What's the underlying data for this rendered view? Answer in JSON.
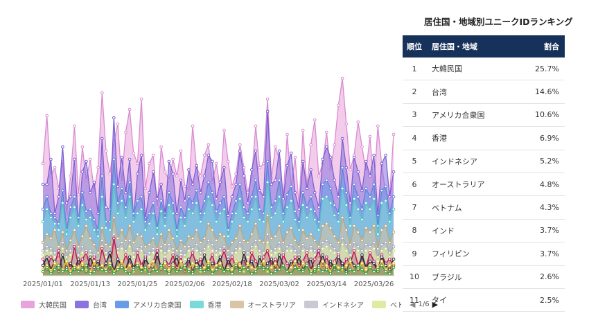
{
  "chart_data": {
    "type": "area",
    "stacked": false,
    "x_ticks": [
      "2025/01/01",
      "2025/01/13",
      "2025/01/25",
      "2025/02/06",
      "2025/02/18",
      "2025/03/02",
      "2025/03/14",
      "2025/03/26"
    ],
    "x_start": "2025/01/01",
    "x_end": "2025/03/31",
    "legend_page": "1/6",
    "legend_position": "bottom",
    "grid": false,
    "series": [
      {
        "name": "大韓民国",
        "color": "#e9a3dc",
        "line": "#d98bd0",
        "values": [
          54,
          77,
          48,
          52,
          42,
          55,
          30,
          48,
          72,
          39,
          62,
          46,
          56,
          41,
          52,
          88,
          60,
          49,
          64,
          73,
          45,
          69,
          80,
          59,
          54,
          85,
          42,
          54,
          58,
          33,
          62,
          50,
          46,
          56,
          48,
          60,
          43,
          42,
          72,
          52,
          48,
          58,
          63,
          45,
          54,
          42,
          70,
          55,
          43,
          49,
          63,
          52,
          40,
          48,
          72,
          52,
          54,
          85,
          47,
          62,
          56,
          38,
          68,
          43,
          57,
          34,
          70,
          43,
          63,
          75,
          48,
          54,
          69,
          51,
          63,
          82,
          95,
          73,
          51,
          58,
          74,
          62,
          50,
          67,
          42,
          72,
          53,
          40,
          38,
          68
        ]
      },
      {
        "name": "台湾",
        "color": "#8b72de",
        "line": "#7a60d2",
        "values": [
          44,
          44,
          56,
          30,
          38,
          62,
          35,
          38,
          56,
          25,
          50,
          55,
          40,
          45,
          30,
          66,
          33,
          32,
          76,
          43,
          57,
          40,
          56,
          28,
          49,
          58,
          28,
          40,
          50,
          37,
          44,
          30,
          55,
          49,
          30,
          46,
          36,
          51,
          44,
          53,
          40,
          48,
          58,
          55,
          37,
          45,
          52,
          29,
          38,
          44,
          60,
          48,
          35,
          51,
          60,
          41,
          38,
          79,
          44,
          46,
          60,
          37,
          53,
          59,
          40,
          32,
          55,
          42,
          51,
          40,
          33,
          56,
          62,
          57,
          46,
          38,
          66,
          52,
          35,
          57,
          50,
          41,
          55,
          48,
          58,
          29,
          54,
          58,
          38,
          50
        ]
      },
      {
        "name": "アメリカ合衆国",
        "color": "#6a9be8",
        "line": "#5b87d9",
        "values": [
          32,
          38,
          30,
          28,
          25,
          41,
          22,
          33,
          38,
          28,
          40,
          31,
          32,
          27,
          22,
          48,
          26,
          26,
          56,
          35,
          42,
          33,
          45,
          30,
          36,
          38,
          26,
          30,
          35,
          23,
          36,
          28,
          40,
          35,
          22,
          33,
          28,
          38,
          35,
          41,
          30,
          36,
          45,
          40,
          31,
          35,
          38,
          22,
          30,
          36,
          44,
          33,
          30,
          38,
          46,
          32,
          30,
          55,
          33,
          36,
          46,
          30,
          39,
          43,
          31,
          26,
          40,
          33,
          38,
          31,
          26,
          44,
          46,
          42,
          34,
          30,
          52,
          40,
          28,
          44,
          38,
          32,
          42,
          38,
          44,
          24,
          41,
          43,
          30,
          38
        ]
      },
      {
        "name": "香港",
        "color": "#7ad9d9",
        "line": "#52c4c4",
        "values": [
          26,
          32,
          28,
          25,
          22,
          35,
          20,
          28,
          33,
          24,
          34,
          27,
          28,
          22,
          19,
          38,
          23,
          22,
          44,
          30,
          36,
          28,
          38,
          26,
          30,
          32,
          22,
          25,
          30,
          20,
          31,
          24,
          34,
          30,
          19,
          28,
          24,
          32,
          30,
          35,
          26,
          30,
          38,
          34,
          26,
          30,
          32,
          19,
          26,
          30,
          37,
          28,
          26,
          32,
          38,
          27,
          26,
          45,
          28,
          30,
          38,
          26,
          33,
          36,
          27,
          22,
          34,
          28,
          32,
          27,
          22,
          37,
          38,
          35,
          29,
          26,
          42,
          34,
          24,
          37,
          32,
          27,
          35,
          32,
          37,
          20,
          35,
          36,
          26,
          32
        ]
      },
      {
        "name": "オーストラリア",
        "color": "#d9c4a3",
        "line": "#bfa47a",
        "values": [
          16,
          20,
          18,
          22,
          14,
          21,
          12,
          17,
          22,
          14,
          19,
          24,
          18,
          15,
          11,
          23,
          15,
          14,
          28,
          18,
          22,
          17,
          24,
          16,
          20,
          19,
          14,
          15,
          18,
          13,
          20,
          15,
          22,
          18,
          12,
          17,
          14,
          19,
          18,
          22,
          16,
          18,
          25,
          22,
          17,
          20,
          19,
          12,
          16,
          18,
          24,
          17,
          16,
          20,
          25,
          17,
          16,
          29,
          18,
          19,
          24,
          16,
          21,
          23,
          17,
          14,
          22,
          18,
          20,
          17,
          14,
          24,
          25,
          23,
          19,
          16,
          28,
          22,
          15,
          24,
          21,
          17,
          23,
          21,
          24,
          13,
          22,
          24,
          16,
          21
        ]
      },
      {
        "name": "インドネシア",
        "color": "#c9c9d6",
        "line": "#a8a8bc",
        "values": [
          12,
          14,
          13,
          11,
          10,
          16,
          9,
          12,
          15,
          10,
          14,
          12,
          12,
          10,
          8,
          17,
          11,
          10,
          20,
          13,
          16,
          12,
          17,
          11,
          13,
          14,
          10,
          11,
          13,
          9,
          14,
          11,
          15,
          13,
          9,
          12,
          10,
          14,
          13,
          15,
          11,
          13,
          17,
          15,
          12,
          13,
          14,
          9,
          11,
          13,
          16,
          12,
          11,
          14,
          17,
          12,
          11,
          20,
          12,
          13,
          16,
          11,
          14,
          15,
          12,
          10,
          15,
          12,
          14,
          12,
          10,
          16,
          17,
          15,
          13,
          11,
          18,
          15,
          10,
          16,
          14,
          12,
          15,
          14,
          16,
          9,
          15,
          16,
          11,
          14
        ]
      },
      {
        "name": "ベトナム",
        "color": "#e0eaa5",
        "line": "#cbd77c",
        "values": [
          10,
          12,
          11,
          9,
          8,
          13,
          7,
          10,
          12,
          8,
          11,
          10,
          10,
          8,
          7,
          14,
          9,
          8,
          16,
          11,
          13,
          10,
          14,
          9,
          11,
          12,
          8,
          9,
          11,
          7,
          12,
          9,
          12,
          11,
          7,
          10,
          8,
          12,
          11,
          12,
          9,
          11,
          14,
          12,
          10,
          11,
          12,
          7,
          9,
          11,
          13,
          10,
          9,
          12,
          14,
          10,
          9,
          16,
          10,
          11,
          13,
          9,
          12,
          12,
          10,
          8,
          12,
          10,
          12,
          10,
          8,
          13,
          14,
          12,
          11,
          9,
          15,
          12,
          8,
          13,
          12,
          10,
          12,
          12,
          13,
          7,
          12,
          13,
          9,
          12
        ]
      },
      {
        "name": "インド",
        "color": "#c2185b",
        "line": "#c2185b",
        "values": [
          8,
          3,
          9,
          6,
          12,
          2,
          7,
          4,
          14,
          5,
          8,
          11,
          4,
          9,
          3,
          13,
          6,
          2,
          18,
          8,
          4,
          10,
          6,
          3,
          11,
          5,
          9,
          4,
          7,
          12,
          3,
          8,
          5,
          10,
          4,
          9,
          2,
          7,
          11,
          5,
          8,
          4,
          6,
          10,
          3,
          7,
          12,
          5,
          9,
          4,
          6,
          8,
          3,
          11,
          7,
          4,
          9,
          12,
          5,
          8,
          3,
          10,
          6,
          4,
          9,
          5,
          7,
          11,
          3,
          8,
          12,
          5,
          9,
          4,
          7,
          10,
          3,
          8,
          6,
          12,
          5,
          9,
          4,
          11,
          7,
          3,
          10,
          6,
          8,
          5
        ]
      },
      {
        "name": "フィリピン",
        "color": "#2b2b3a",
        "line": "#2b2b3a",
        "values": [
          5,
          9,
          3,
          7,
          2,
          10,
          4,
          6,
          3,
          8,
          5,
          2,
          9,
          4,
          7,
          3,
          6,
          11,
          2,
          8,
          5,
          3,
          9,
          4,
          6,
          2,
          8,
          5,
          3,
          10,
          4,
          7,
          2,
          6,
          9,
          3,
          5,
          8,
          2,
          7,
          4,
          10,
          3,
          6,
          5,
          9,
          2,
          8,
          4,
          6,
          3,
          11,
          5,
          7,
          2,
          9,
          4,
          6,
          8,
          3,
          10,
          5,
          2,
          7,
          4,
          9,
          3,
          6,
          8,
          2,
          5,
          10,
          4,
          7,
          3,
          9,
          6,
          2,
          8,
          5,
          3,
          10,
          4,
          7,
          6,
          2,
          9,
          5,
          3,
          8
        ]
      },
      {
        "name": "ブラジル",
        "color": "#f2d94e",
        "line": "#e0c22c",
        "values": [
          3,
          5,
          2,
          6,
          4,
          3,
          7,
          2,
          5,
          4,
          6,
          3,
          2,
          7,
          4,
          5,
          3,
          6,
          2,
          4,
          7,
          3,
          5,
          2,
          6,
          4,
          3,
          5,
          7,
          2,
          4,
          6,
          3,
          5,
          2,
          7,
          4,
          3,
          6,
          5,
          2,
          4,
          7,
          3,
          5,
          6,
          2,
          4,
          3,
          7,
          5,
          2,
          6,
          4,
          3,
          5,
          7,
          2,
          4,
          6,
          3,
          5,
          2,
          4,
          7,
          3,
          6,
          5,
          2,
          4,
          3,
          7,
          5,
          2,
          6,
          4,
          3,
          5,
          7,
          2,
          4,
          6,
          3,
          5,
          2,
          4,
          7,
          3,
          5,
          6
        ]
      },
      {
        "name": "タイ",
        "color": "#4caf50",
        "line": "#3a9c3e",
        "values": [
          2,
          4,
          1,
          3,
          5,
          2,
          3,
          1,
          4,
          2,
          3,
          5,
          1,
          2,
          4,
          3,
          2,
          5,
          1,
          3,
          4,
          2,
          1,
          3,
          5,
          2,
          4,
          1,
          3,
          2,
          5,
          3,
          1,
          4,
          2,
          3,
          5,
          2,
          1,
          4,
          3,
          2,
          5,
          1,
          3,
          4,
          2,
          3,
          1,
          5,
          2,
          4,
          3,
          1,
          2,
          5,
          3,
          4,
          1,
          2,
          3,
          5,
          2,
          1,
          4,
          3,
          2,
          5,
          1,
          3,
          4,
          2,
          3,
          1,
          5,
          2,
          4,
          1,
          3,
          2,
          5,
          3,
          1,
          4,
          2,
          3,
          5,
          2,
          1,
          4
        ]
      }
    ]
  },
  "ranking": {
    "title": "居住国・地域別ユニークIDランキング",
    "headers": {
      "rank": "順位",
      "country": "居住国・地域",
      "share": "割合"
    },
    "rows": [
      {
        "rank": "1",
        "country": "大韓民国",
        "share": "25.7%"
      },
      {
        "rank": "2",
        "country": "台湾",
        "share": "14.6%"
      },
      {
        "rank": "3",
        "country": "アメリカ合衆国",
        "share": "10.6%"
      },
      {
        "rank": "4",
        "country": "香港",
        "share": "6.9%"
      },
      {
        "rank": "5",
        "country": "インドネシア",
        "share": "5.2%"
      },
      {
        "rank": "6",
        "country": "オーストラリア",
        "share": "4.8%"
      },
      {
        "rank": "7",
        "country": "ベトナム",
        "share": "4.3%"
      },
      {
        "rank": "8",
        "country": "インド",
        "share": "3.7%"
      },
      {
        "rank": "9",
        "country": "フィリピン",
        "share": "3.7%"
      },
      {
        "rank": "10",
        "country": "ブラジル",
        "share": "2.6%"
      },
      {
        "rank": "11",
        "country": "タイ",
        "share": "2.5%"
      }
    ]
  }
}
